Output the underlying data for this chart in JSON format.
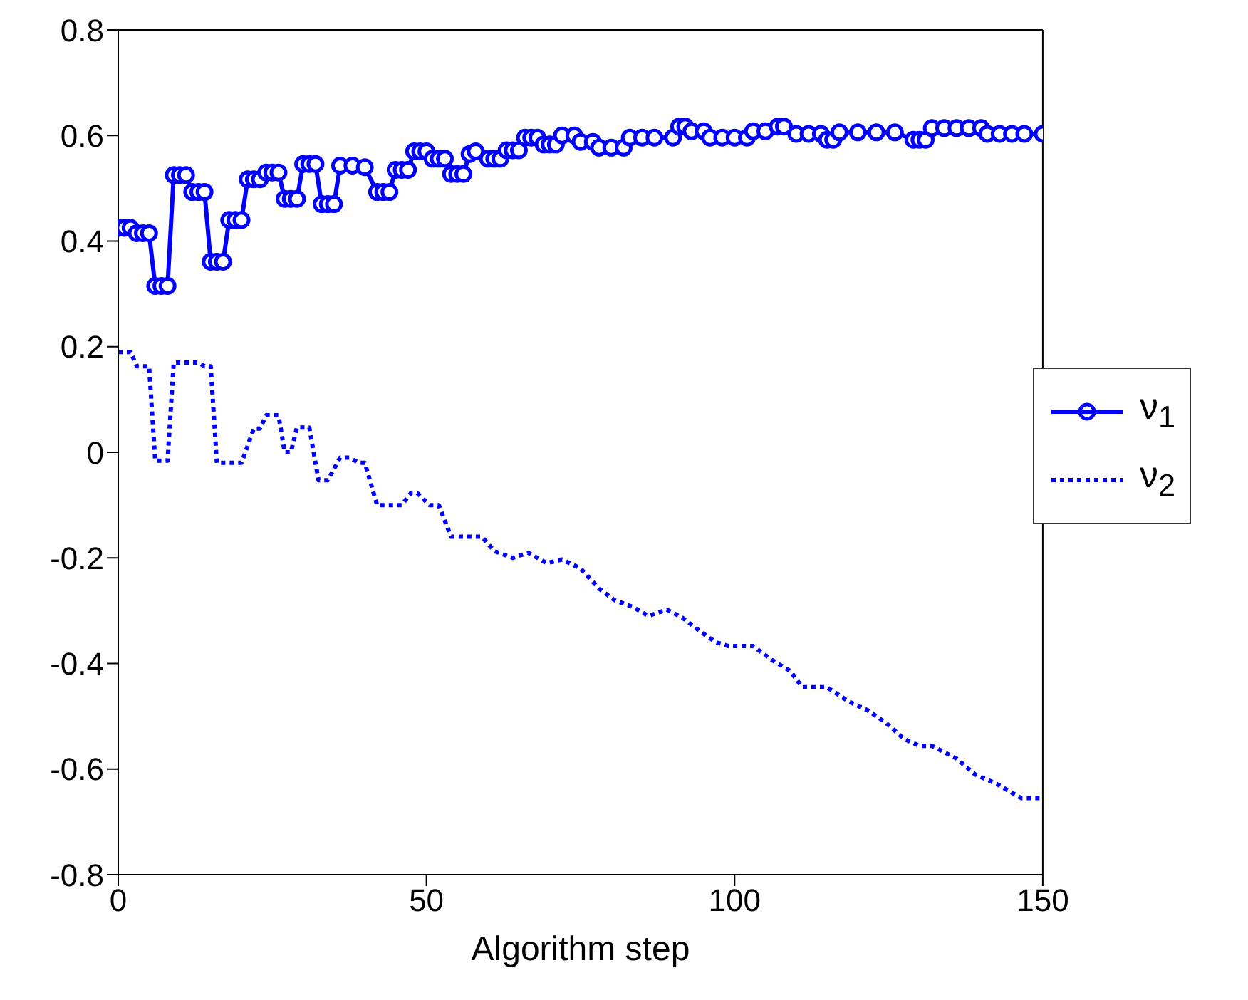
{
  "chart_data": {
    "type": "line",
    "xlabel": "Algorithm step",
    "xlim": [
      0,
      150
    ],
    "xticks": [
      0,
      50,
      100,
      150
    ],
    "ylim": [
      -0.8,
      0.8
    ],
    "yticks": [
      -0.8,
      -0.6,
      -0.4,
      -0.2,
      0,
      0.2,
      0.4,
      0.6,
      0.8
    ],
    "legend": "right",
    "series": [
      {
        "name": "ν$_{1}$",
        "color": "#0000ff",
        "marker": "circle",
        "line_style": "solid",
        "x": [
          0,
          1,
          2,
          3,
          4,
          5,
          6,
          7,
          8,
          9,
          10,
          11,
          12,
          13,
          14,
          15,
          16,
          17,
          18,
          19,
          20,
          21,
          22,
          23,
          24,
          25,
          26,
          27,
          28,
          29,
          30,
          31,
          32,
          33,
          34,
          35,
          36,
          38,
          40,
          42,
          43,
          44,
          45,
          46,
          47,
          48,
          49,
          50,
          51,
          52,
          53,
          54,
          55,
          56,
          57,
          58,
          60,
          61,
          62,
          63,
          64,
          65,
          66,
          67,
          68,
          69,
          70,
          71,
          72,
          74,
          75,
          77,
          78,
          80,
          82,
          83,
          85,
          87,
          90,
          91,
          92,
          93,
          95,
          96,
          98,
          100,
          102,
          103,
          105,
          107,
          108,
          110,
          112,
          114,
          115,
          116,
          117,
          120,
          123,
          126,
          129,
          130,
          131,
          132,
          134,
          136,
          138,
          140,
          141,
          143,
          145,
          147,
          150
        ],
        "values": [
          0.425,
          0.425,
          0.425,
          0.415,
          0.415,
          0.415,
          0.315,
          0.315,
          0.315,
          0.525,
          0.525,
          0.525,
          0.493,
          0.493,
          0.493,
          0.361,
          0.361,
          0.361,
          0.44,
          0.44,
          0.44,
          0.517,
          0.517,
          0.517,
          0.53,
          0.53,
          0.53,
          0.48,
          0.48,
          0.48,
          0.546,
          0.546,
          0.546,
          0.47,
          0.47,
          0.47,
          0.543,
          0.543,
          0.54,
          0.493,
          0.493,
          0.493,
          0.535,
          0.535,
          0.535,
          0.57,
          0.57,
          0.57,
          0.556,
          0.556,
          0.556,
          0.527,
          0.527,
          0.527,
          0.565,
          0.57,
          0.556,
          0.556,
          0.556,
          0.572,
          0.572,
          0.572,
          0.596,
          0.596,
          0.596,
          0.583,
          0.583,
          0.583,
          0.6,
          0.6,
          0.588,
          0.588,
          0.577,
          0.577,
          0.577,
          0.596,
          0.596,
          0.596,
          0.596,
          0.617,
          0.617,
          0.608,
          0.608,
          0.596,
          0.596,
          0.596,
          0.596,
          0.608,
          0.608,
          0.617,
          0.617,
          0.603,
          0.603,
          0.603,
          0.592,
          0.592,
          0.606,
          0.606,
          0.606,
          0.606,
          0.592,
          0.592,
          0.592,
          0.614,
          0.614,
          0.614,
          0.614,
          0.614,
          0.603,
          0.603,
          0.603,
          0.603,
          0.603
        ]
      },
      {
        "name": "ν$_{2}$",
        "color": "#0000ff",
        "marker": "none",
        "line_style": "dotted",
        "x": [
          0,
          2,
          3,
          5,
          6,
          8,
          9,
          13,
          14,
          15,
          16,
          20,
          22,
          23,
          24,
          26,
          27,
          28,
          29,
          31,
          32.5,
          34,
          36,
          37.5,
          39,
          40,
          42,
          46,
          47.5,
          48.5,
          50.5,
          52,
          54,
          59,
          61,
          64,
          66.5,
          69.5,
          72,
          75,
          78,
          80.5,
          83.5,
          86,
          89,
          91.5,
          94.5,
          97,
          99,
          103,
          106,
          109,
          111,
          115,
          118.5,
          121.5,
          124.5,
          127.5,
          130,
          132,
          136,
          139,
          142.5,
          146.5,
          150
        ],
        "values": [
          0.19,
          0.19,
          0.163,
          0.163,
          -0.016,
          -0.016,
          0.17,
          0.17,
          0.163,
          0.163,
          -0.02,
          -0.02,
          0.045,
          0.045,
          0.07,
          0.07,
          0,
          0,
          0.047,
          0.047,
          -0.053,
          -0.053,
          -0.01,
          -0.01,
          -0.02,
          -0.02,
          -0.1,
          -0.1,
          -0.077,
          -0.077,
          -0.1,
          -0.1,
          -0.16,
          -0.16,
          -0.187,
          -0.2,
          -0.19,
          -0.21,
          -0.203,
          -0.22,
          -0.258,
          -0.28,
          -0.293,
          -0.31,
          -0.298,
          -0.313,
          -0.34,
          -0.36,
          -0.367,
          -0.367,
          -0.393,
          -0.414,
          -0.445,
          -0.445,
          -0.472,
          -0.488,
          -0.512,
          -0.543,
          -0.556,
          -0.556,
          -0.58,
          -0.61,
          -0.628,
          -0.655,
          -0.655
        ]
      }
    ]
  }
}
